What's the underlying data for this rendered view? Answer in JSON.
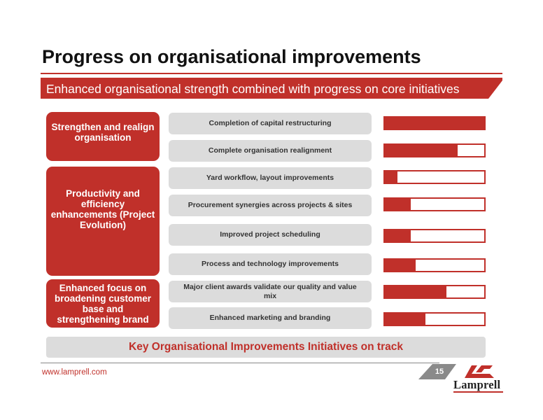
{
  "title": "Progress on organisational improvements",
  "subtitle": "Enhanced organisational strength combined with progress on core initiatives",
  "categories": [
    {
      "label": "Strengthen and realign organisation"
    },
    {
      "label": "Productivity and efficiency enhancements (Project Evolution)"
    },
    {
      "label": "Enhanced focus on broadening customer base and strengthening brand"
    }
  ],
  "initiatives": [
    {
      "label": "Completion of capital restructuring",
      "progress": 1.0
    },
    {
      "label": "Complete organisation realignment",
      "progress": 0.73
    },
    {
      "label": "Yard workflow, layout improvements",
      "progress": 0.13
    },
    {
      "label": "Procurement synergies across projects & sites",
      "progress": 0.26
    },
    {
      "label": "Improved project scheduling",
      "progress": 0.26
    },
    {
      "label": "Process and technology improvements",
      "progress": 0.31
    },
    {
      "label": "Major client awards validate our quality and value mix",
      "progress": 0.62
    },
    {
      "label": "Enhanced marketing and branding",
      "progress": 0.41
    }
  ],
  "footer_message": "Key Organisational Improvements Initiatives on track",
  "website": "www.lamprell.com",
  "page_number": "15",
  "logo_text": "Lamprell",
  "colors": {
    "accent": "#c0302a",
    "panel": "#dcdcdc"
  }
}
